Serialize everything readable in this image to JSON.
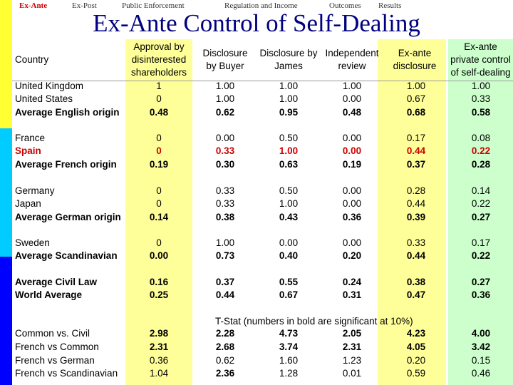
{
  "nav": {
    "items": [
      "Ex-Ante",
      "Ex-Post",
      "Public Enforcement",
      "Regulation and Income",
      "Outcomes",
      "Results"
    ],
    "active": "Ex-Ante"
  },
  "title": "Ex-Ante Control of Self-Dealing",
  "table": {
    "headers": {
      "country": "Country",
      "approval": [
        "Approval by",
        "disinterested",
        "shareholders"
      ],
      "disclosure_buyer": [
        "Disclosure",
        "by Buyer"
      ],
      "disclosure_james": [
        "Disclosure by",
        "James"
      ],
      "independent_review": [
        "Independent",
        "review"
      ],
      "exante_disclosure": [
        "Ex-ante",
        "disclosure"
      ],
      "exante_private": [
        "Ex-ante",
        "private control",
        "of self-dealing"
      ]
    },
    "rows": [
      {
        "label": "United Kingdom",
        "values": [
          "1",
          "1.00",
          "1.00",
          "1.00",
          "1.00",
          "1.00"
        ],
        "bold": false,
        "red": false
      },
      {
        "label": "United States",
        "values": [
          "0",
          "1.00",
          "1.00",
          "0.00",
          "0.67",
          "0.33"
        ],
        "bold": false,
        "red": false
      },
      {
        "label": "Average English origin",
        "values": [
          "0.48",
          "0.62",
          "0.95",
          "0.48",
          "0.68",
          "0.58"
        ],
        "bold": true,
        "red": false
      },
      {
        "label": "France",
        "values": [
          "0",
          "0.00",
          "0.50",
          "0.00",
          "0.17",
          "0.08"
        ],
        "bold": false,
        "red": false
      },
      {
        "label": "Spain",
        "values": [
          "0",
          "0.33",
          "1.00",
          "0.00",
          "0.44",
          "0.22"
        ],
        "bold": true,
        "red": true
      },
      {
        "label": "Average French origin",
        "values": [
          "0.19",
          "0.30",
          "0.63",
          "0.19",
          "0.37",
          "0.28"
        ],
        "bold": true,
        "red": false
      },
      {
        "label": "Germany",
        "values": [
          "0",
          "0.33",
          "0.50",
          "0.00",
          "0.28",
          "0.14"
        ],
        "bold": false,
        "red": false
      },
      {
        "label": "Japan",
        "values": [
          "0",
          "0.33",
          "1.00",
          "0.00",
          "0.44",
          "0.22"
        ],
        "bold": false,
        "red": false
      },
      {
        "label": "Average German origin",
        "values": [
          "0.14",
          "0.38",
          "0.43",
          "0.36",
          "0.39",
          "0.27"
        ],
        "bold": true,
        "red": false
      },
      {
        "label": "Sweden",
        "values": [
          "0",
          "1.00",
          "0.00",
          "0.00",
          "0.33",
          "0.17"
        ],
        "bold": false,
        "red": false
      },
      {
        "label": "Average Scandinavian",
        "values": [
          "0.00",
          "0.73",
          "0.40",
          "0.20",
          "0.44",
          "0.22"
        ],
        "bold": true,
        "red": false
      },
      {
        "label": "Average Civil Law",
        "values": [
          "0.16",
          "0.37",
          "0.55",
          "0.24",
          "0.38",
          "0.27"
        ],
        "bold": true,
        "red": false
      },
      {
        "label": "World Average",
        "values": [
          "0.25",
          "0.44",
          "0.67",
          "0.31",
          "0.47",
          "0.36"
        ],
        "bold": true,
        "red": false
      }
    ],
    "tstat_label": "T-Stat (numbers in bold are significant at 10%)",
    "tstat_rows": [
      {
        "label": "Common vs. Civil",
        "values": [
          "2.98",
          "2.28",
          "4.73",
          "2.05",
          "4.23",
          "4.00"
        ],
        "bold": [
          true,
          true,
          true,
          true,
          true,
          true
        ]
      },
      {
        "label": "French vs Common",
        "values": [
          "2.31",
          "2.68",
          "3.74",
          "2.31",
          "4.05",
          "3.42"
        ],
        "bold": [
          true,
          true,
          true,
          true,
          true,
          true
        ]
      },
      {
        "label": "French vs German",
        "values": [
          "0.36",
          "0.62",
          "1.60",
          "1.23",
          "0.20",
          "0.15"
        ],
        "bold": [
          false,
          false,
          false,
          false,
          false,
          false
        ]
      },
      {
        "label": "French vs Scandinavian",
        "values": [
          "1.04",
          "2.36",
          "1.28",
          "0.01",
          "0.59",
          "0.46"
        ],
        "bold": [
          false,
          true,
          false,
          false,
          false,
          false
        ]
      }
    ]
  }
}
